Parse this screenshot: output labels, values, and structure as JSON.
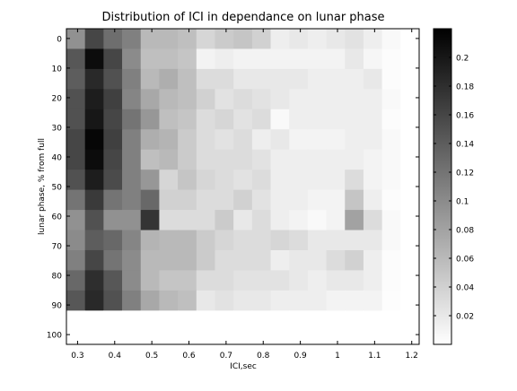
{
  "chart_data": {
    "type": "heatmap",
    "title": "Distribution of ICI in dependance on lunar phase",
    "xlabel": "ICI,sec",
    "ylabel": "lunar phase, % from full",
    "x_ticks": [
      "0.3",
      "0.4",
      "0.5",
      "0.6",
      "0.7",
      "0.8",
      "0.9",
      "1",
      "1.1",
      "1.2"
    ],
    "y_ticks": [
      "0",
      "10",
      "20",
      "30",
      "40",
      "50",
      "60",
      "70",
      "80",
      "90",
      "100"
    ],
    "xlim": [
      0.27,
      1.22
    ],
    "ylim_reversed": [
      -3.3,
      103.3
    ],
    "colorbar_ticks": [
      "0.2",
      "0.18",
      "0.16",
      "0.14",
      "0.12",
      "0.1",
      "0.08",
      "0.06",
      "0.04",
      "0.02"
    ],
    "colorbar_range": [
      0,
      0.22
    ],
    "colormap": "gray reversed (white = low, black = high)",
    "x_edges": [
      0.27,
      0.32,
      0.37,
      0.42,
      0.47,
      0.52,
      0.57,
      0.62,
      0.67,
      0.72,
      0.77,
      0.82,
      0.87,
      0.92,
      0.97,
      1.02,
      1.07,
      1.12,
      1.17,
      1.22
    ],
    "y_edges": [
      -3.3,
      3.5,
      10.3,
      17.1,
      23.9,
      30.7,
      37.5,
      44.3,
      51.1,
      57.9,
      64.7,
      71.5,
      78.3,
      85.1,
      91.9,
      98.7,
      103.3
    ],
    "values": [
      [
        0.095,
        0.16,
        0.125,
        0.11,
        0.06,
        0.06,
        0.055,
        0.035,
        0.045,
        0.05,
        0.04,
        0.015,
        0.02,
        0.015,
        0.02,
        0.025,
        0.015,
        0.005,
        0.0
      ],
      [
        0.145,
        0.21,
        0.16,
        0.1,
        0.055,
        0.055,
        0.05,
        0.01,
        0.015,
        0.01,
        0.01,
        0.01,
        0.01,
        0.01,
        0.01,
        0.02,
        0.008,
        0.003,
        0.0
      ],
      [
        0.14,
        0.185,
        0.15,
        0.11,
        0.06,
        0.07,
        0.055,
        0.03,
        0.03,
        0.02,
        0.02,
        0.02,
        0.02,
        0.015,
        0.015,
        0.015,
        0.02,
        0.003,
        0.0
      ],
      [
        0.15,
        0.195,
        0.165,
        0.105,
        0.075,
        0.06,
        0.055,
        0.04,
        0.025,
        0.03,
        0.025,
        0.02,
        0.015,
        0.015,
        0.015,
        0.015,
        0.015,
        0.005,
        0.0
      ],
      [
        0.15,
        0.2,
        0.16,
        0.12,
        0.09,
        0.055,
        0.05,
        0.03,
        0.035,
        0.025,
        0.03,
        0.005,
        0.015,
        0.015,
        0.015,
        0.015,
        0.015,
        0.003,
        0.0
      ],
      [
        0.16,
        0.215,
        0.165,
        0.11,
        0.07,
        0.065,
        0.045,
        0.03,
        0.025,
        0.03,
        0.015,
        0.02,
        0.01,
        0.01,
        0.01,
        0.015,
        0.015,
        0.005,
        0.0
      ],
      [
        0.16,
        0.21,
        0.16,
        0.11,
        0.055,
        0.06,
        0.045,
        0.03,
        0.03,
        0.03,
        0.025,
        0.015,
        0.015,
        0.015,
        0.015,
        0.015,
        0.01,
        0.005,
        0.0
      ],
      [
        0.15,
        0.195,
        0.155,
        0.11,
        0.09,
        0.035,
        0.05,
        0.035,
        0.03,
        0.025,
        0.03,
        0.015,
        0.015,
        0.015,
        0.015,
        0.03,
        0.01,
        0.005,
        0.0
      ],
      [
        0.12,
        0.17,
        0.12,
        0.11,
        0.13,
        0.04,
        0.04,
        0.03,
        0.03,
        0.04,
        0.025,
        0.015,
        0.015,
        0.01,
        0.01,
        0.05,
        0.015,
        0.003,
        0.0
      ],
      [
        0.095,
        0.15,
        0.095,
        0.095,
        0.175,
        0.03,
        0.03,
        0.03,
        0.045,
        0.02,
        0.03,
        0.015,
        0.01,
        0.005,
        0.01,
        0.08,
        0.03,
        0.005,
        0.0
      ],
      [
        0.1,
        0.14,
        0.13,
        0.105,
        0.065,
        0.06,
        0.06,
        0.045,
        0.035,
        0.03,
        0.03,
        0.035,
        0.03,
        0.02,
        0.02,
        0.02,
        0.02,
        0.005,
        0.0
      ],
      [
        0.11,
        0.16,
        0.12,
        0.1,
        0.06,
        0.06,
        0.06,
        0.045,
        0.03,
        0.03,
        0.03,
        0.015,
        0.02,
        0.02,
        0.03,
        0.04,
        0.015,
        0.003,
        0.0
      ],
      [
        0.13,
        0.18,
        0.145,
        0.1,
        0.06,
        0.05,
        0.05,
        0.03,
        0.03,
        0.025,
        0.025,
        0.025,
        0.02,
        0.015,
        0.02,
        0.02,
        0.015,
        0.003,
        0.0
      ],
      [
        0.145,
        0.185,
        0.15,
        0.11,
        0.075,
        0.06,
        0.055,
        0.02,
        0.025,
        0.02,
        0.02,
        0.015,
        0.015,
        0.015,
        0.01,
        0.01,
        0.01,
        0.002,
        0.0
      ],
      [
        0.0,
        0.0,
        0.0,
        0.0,
        0.0,
        0.0,
        0.0,
        0.0,
        0.0,
        0.0,
        0.0,
        0.0,
        0.0,
        0.0,
        0.0,
        0.0,
        0.0,
        0.0,
        0.0
      ],
      [
        0.0,
        0.0,
        0.0,
        0.0,
        0.0,
        0.0,
        0.0,
        0.0,
        0.0,
        0.0,
        0.0,
        0.0,
        0.0,
        0.0,
        0.0,
        0.0,
        0.0,
        0.0,
        0.0
      ]
    ]
  }
}
